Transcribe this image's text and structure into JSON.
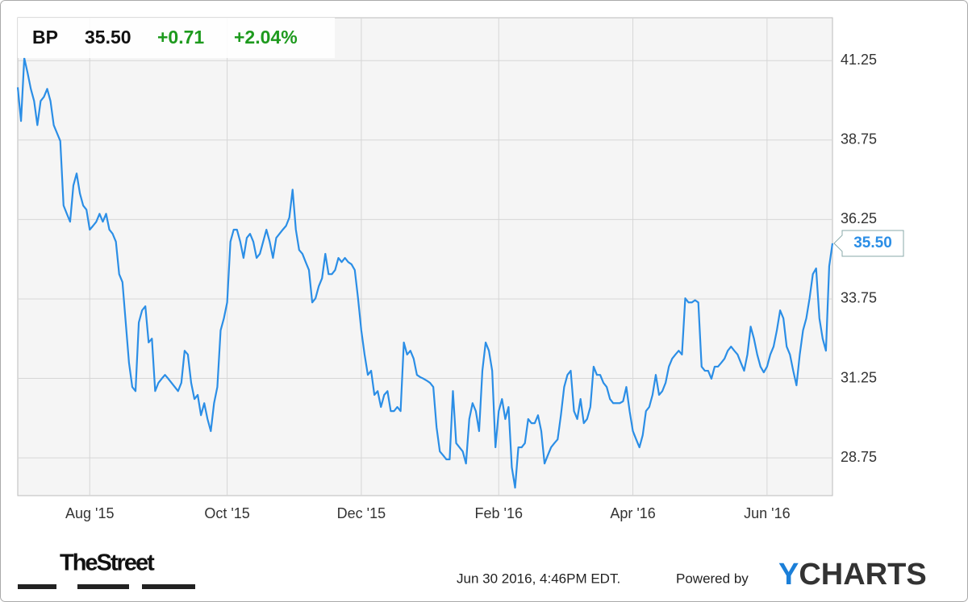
{
  "quote": {
    "symbol": "BP",
    "price": "35.50",
    "change": "+0.71",
    "change_percent": "+2.04%"
  },
  "chart_data": {
    "type": "line",
    "color": "#2b8ee6",
    "grid": true,
    "values": [
      40.41,
      39.35,
      41.33,
      40.87,
      40.36,
      39.98,
      39.22,
      39.98,
      40.11,
      40.36,
      39.98,
      39.22,
      38.97,
      38.72,
      36.69,
      36.43,
      36.18,
      37.32,
      37.7,
      37.07,
      36.69,
      36.56,
      35.93,
      36.05,
      36.18,
      36.43,
      36.18,
      36.43,
      35.93,
      35.8,
      35.55,
      34.53,
      34.28,
      33.01,
      31.74,
      30.98,
      30.85,
      33.01,
      33.39,
      33.52,
      32.38,
      32.5,
      30.85,
      31.11,
      31.24,
      31.36,
      31.24,
      31.11,
      30.98,
      30.85,
      31.11,
      32.12,
      32.0,
      31.11,
      30.6,
      30.73,
      30.09,
      30.47,
      29.97,
      29.59,
      30.47,
      30.98,
      32.76,
      33.14,
      33.64,
      35.55,
      35.93,
      35.93,
      35.55,
      35.04,
      35.67,
      35.8,
      35.55,
      35.04,
      35.17,
      35.55,
      35.93,
      35.55,
      35.04,
      35.67,
      35.8,
      35.93,
      36.05,
      36.31,
      37.19,
      35.93,
      35.29,
      35.17,
      34.91,
      34.66,
      33.64,
      33.77,
      34.15,
      34.4,
      35.17,
      34.53,
      34.53,
      34.66,
      35.04,
      34.91,
      35.04,
      34.91,
      34.84,
      34.66,
      33.77,
      32.76,
      32.0,
      31.36,
      31.49,
      30.73,
      30.85,
      30.35,
      30.73,
      30.85,
      30.22,
      30.22,
      30.35,
      30.22,
      32.38,
      32.0,
      32.12,
      31.87,
      31.36,
      31.29,
      31.24,
      31.18,
      31.11,
      30.98,
      29.71,
      28.95,
      28.83,
      28.7,
      28.7,
      30.85,
      29.21,
      29.08,
      28.95,
      28.57,
      29.97,
      30.47,
      30.22,
      29.59,
      31.49,
      32.38,
      32.12,
      31.49,
      29.08,
      30.22,
      30.6,
      29.97,
      30.35,
      28.45,
      27.81,
      29.08,
      29.08,
      29.21,
      29.97,
      29.84,
      29.84,
      30.09,
      29.59,
      28.57,
      28.83,
      29.08,
      29.21,
      29.33,
      30.09,
      30.98,
      31.36,
      31.49,
      30.22,
      29.97,
      30.6,
      29.84,
      29.97,
      30.35,
      31.62,
      31.36,
      31.36,
      31.11,
      30.98,
      30.6,
      30.47,
      30.47,
      30.47,
      30.53,
      30.98,
      30.22,
      29.59,
      29.33,
      29.08,
      29.46,
      30.22,
      30.35,
      30.73,
      31.36,
      30.73,
      30.85,
      31.11,
      31.62,
      31.87,
      32.0,
      32.12,
      32.0,
      33.77,
      33.64,
      33.64,
      33.71,
      33.64,
      31.62,
      31.49,
      31.49,
      31.24,
      31.62,
      31.62,
      31.74,
      31.87,
      32.12,
      32.25,
      32.12,
      32.0,
      31.74,
      31.49,
      32.0,
      32.88,
      32.5,
      32.0,
      31.62,
      31.44,
      31.62,
      32.0,
      32.25,
      32.76,
      33.39,
      33.14,
      32.25,
      32.0,
      31.49,
      31.03,
      32.0,
      32.76,
      33.14,
      33.77,
      34.53,
      34.71,
      33.14,
      32.5,
      32.12,
      34.78,
      35.5
    ],
    "value_labels": {
      "249": "35.50"
    },
    "xlim": [
      0,
      249
    ],
    "xticks": [
      {
        "value": 22,
        "label": "Aug '15"
      },
      {
        "value": 64,
        "label": "Oct '15"
      },
      {
        "value": 105,
        "label": "Dec '15"
      },
      {
        "value": 147,
        "label": "Feb '16"
      },
      {
        "value": 188,
        "label": "Apr '16"
      },
      {
        "value": 229,
        "label": "Jun '16"
      }
    ],
    "ylim": [
      27.56,
      42.6
    ],
    "yticks": [
      28.75,
      31.25,
      33.75,
      36.25,
      38.75,
      41.25
    ]
  },
  "footer": {
    "source_logo": "TheStreet",
    "timestamp": "Jun 30 2016, 4:46PM EDT.",
    "powered_by": "Powered by",
    "brand": "YCHARTS"
  }
}
